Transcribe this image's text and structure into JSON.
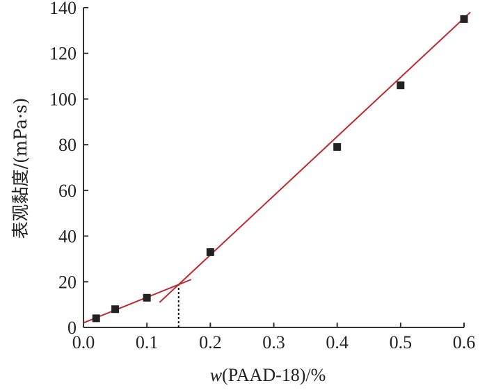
{
  "chart_data": {
    "type": "scatter",
    "title": "",
    "xlabel": {
      "italic": "w",
      "rest": "(PAAD-18)/%"
    },
    "ylabel": "表观黏度/(mPa·s)",
    "xlim": [
      0.0,
      0.6
    ],
    "ylim": [
      0,
      140
    ],
    "xticks": [
      {
        "value": 0.0,
        "label": "0.0"
      },
      {
        "value": 0.1,
        "label": "0.1"
      },
      {
        "value": 0.2,
        "label": "0.2"
      },
      {
        "value": 0.3,
        "label": "0.3"
      },
      {
        "value": 0.4,
        "label": "0.4"
      },
      {
        "value": 0.5,
        "label": "0.5"
      },
      {
        "value": 0.6,
        "label": "0.6"
      }
    ],
    "yticks": [
      {
        "value": 0,
        "label": "0"
      },
      {
        "value": 20,
        "label": "20"
      },
      {
        "value": 40,
        "label": "40"
      },
      {
        "value": 60,
        "label": "60"
      },
      {
        "value": 80,
        "label": "80"
      },
      {
        "value": 100,
        "label": "100"
      },
      {
        "value": 120,
        "label": "120"
      },
      {
        "value": 140,
        "label": "140"
      }
    ],
    "grid": false,
    "legend": "none",
    "series": [
      {
        "marker": "square",
        "color": "#222222",
        "points": [
          {
            "x": 0.02,
            "y": 4
          },
          {
            "x": 0.05,
            "y": 8
          },
          {
            "x": 0.1,
            "y": 13
          },
          {
            "x": 0.2,
            "y": 33
          },
          {
            "x": 0.4,
            "y": 79
          },
          {
            "x": 0.5,
            "y": 106
          },
          {
            "x": 0.6,
            "y": 135
          }
        ]
      }
    ],
    "fit_lines": [
      {
        "color": "#c0272d",
        "from": {
          "x": 0.0,
          "y": 2
        },
        "to": {
          "x": 0.17,
          "y": 21
        }
      },
      {
        "color": "#c0272d",
        "from": {
          "x": 0.12,
          "y": 11
        },
        "to": {
          "x": 0.61,
          "y": 138
        }
      }
    ],
    "reference_lines": [
      {
        "style": "dotted",
        "color": "#111111",
        "x": 0.15,
        "from_y": 0,
        "to_y": 19
      }
    ],
    "critical_x": 0.15
  }
}
